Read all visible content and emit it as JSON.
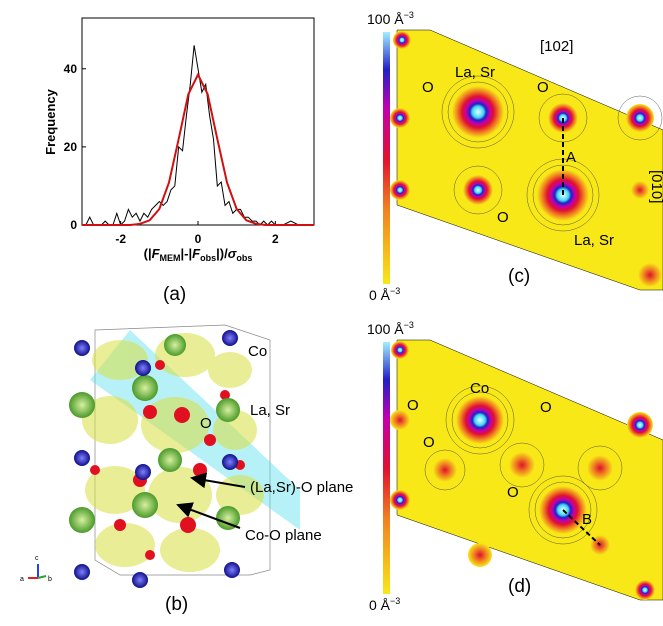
{
  "chart_data": {
    "type": "line",
    "ylabel": "Frequency",
    "xlabel_parts": [
      "(|",
      "F",
      "MEM",
      "|-|",
      "F",
      "obs",
      "|)/",
      "σ",
      "obs"
    ],
    "series": [
      {
        "color": "#000000",
        "x": [
          -2.9,
          -2.8,
          -2.7,
          -2.6,
          -2.5,
          -2.4,
          -2.3,
          -2.2,
          -2.1,
          -2.0,
          -1.9,
          -1.8,
          -1.7,
          -1.6,
          -1.5,
          -1.4,
          -1.3,
          -1.2,
          -1.1,
          -1.0,
          -0.9,
          -0.8,
          -0.7,
          -0.6,
          -0.5,
          -0.4,
          -0.3,
          -0.2,
          -0.1,
          0,
          0.1,
          0.2,
          0.3,
          0.4,
          0.5,
          0.6,
          0.7,
          0.8,
          0.9,
          1.0,
          1.1,
          1.2,
          1.3,
          1.4,
          1.5,
          1.6,
          1.7,
          1.8,
          1.9,
          2.0,
          2.2,
          2.4,
          2.6,
          2.8
        ],
        "values": [
          0,
          2,
          0,
          0,
          0,
          1,
          0,
          0,
          3,
          0,
          1,
          4,
          2,
          3,
          1,
          3,
          2,
          4,
          5,
          6,
          5,
          6,
          9,
          10,
          20,
          19,
          28,
          36,
          46,
          40,
          34,
          36,
          28,
          22,
          10,
          11,
          5,
          6,
          3,
          4,
          4,
          2,
          2,
          1,
          1,
          0,
          1,
          0,
          1,
          0,
          0,
          1,
          0,
          0
        ]
      },
      {
        "color": "#d01010",
        "x": [
          -3,
          -2.75,
          -2.5,
          -2.25,
          -2,
          -1.75,
          -1.5,
          -1.25,
          -1,
          -0.75,
          -0.5,
          -0.25,
          0,
          0.25,
          0.5,
          0.75,
          1,
          1.25,
          1.5,
          1.75,
          2,
          2.25,
          2.5,
          2.75,
          3
        ],
        "values": [
          0,
          0,
          0,
          0,
          0,
          0,
          0.3,
          1.2,
          4.1,
          10.9,
          22,
          33.5,
          38.5,
          33.5,
          22,
          10.9,
          4.1,
          1.2,
          0.3,
          0,
          0,
          0,
          0,
          0,
          0
        ]
      }
    ],
    "xlim": [
      -3,
      3
    ],
    "ylim": [
      0,
      53
    ],
    "xticks": [
      -2,
      0,
      2
    ],
    "yticks": [
      0,
      20,
      40
    ]
  },
  "panel_labels": [
    "(a)",
    "(b)",
    "(c)",
    "(d)"
  ],
  "panel_b": {
    "labels": [
      "Co",
      "La, Sr",
      "O",
      "(La,Sr)-O plane",
      "Co-O plane"
    ],
    "axes": [
      "c",
      "a",
      "b"
    ]
  },
  "panel_c": {
    "colorbar_max": [
      "100 Å",
      "−3"
    ],
    "colorbar_min": [
      "0 Å",
      "−3"
    ],
    "labels": [
      "[102]",
      "La, Sr",
      "O",
      "O",
      "A",
      "O",
      "La, Sr",
      "[010]"
    ]
  },
  "panel_d": {
    "colorbar_max": [
      "100 Å",
      "−3"
    ],
    "colorbar_min": [
      "0 Å",
      "−3"
    ],
    "labels": [
      "Co",
      "O",
      "O",
      "O",
      "O",
      "B"
    ]
  }
}
